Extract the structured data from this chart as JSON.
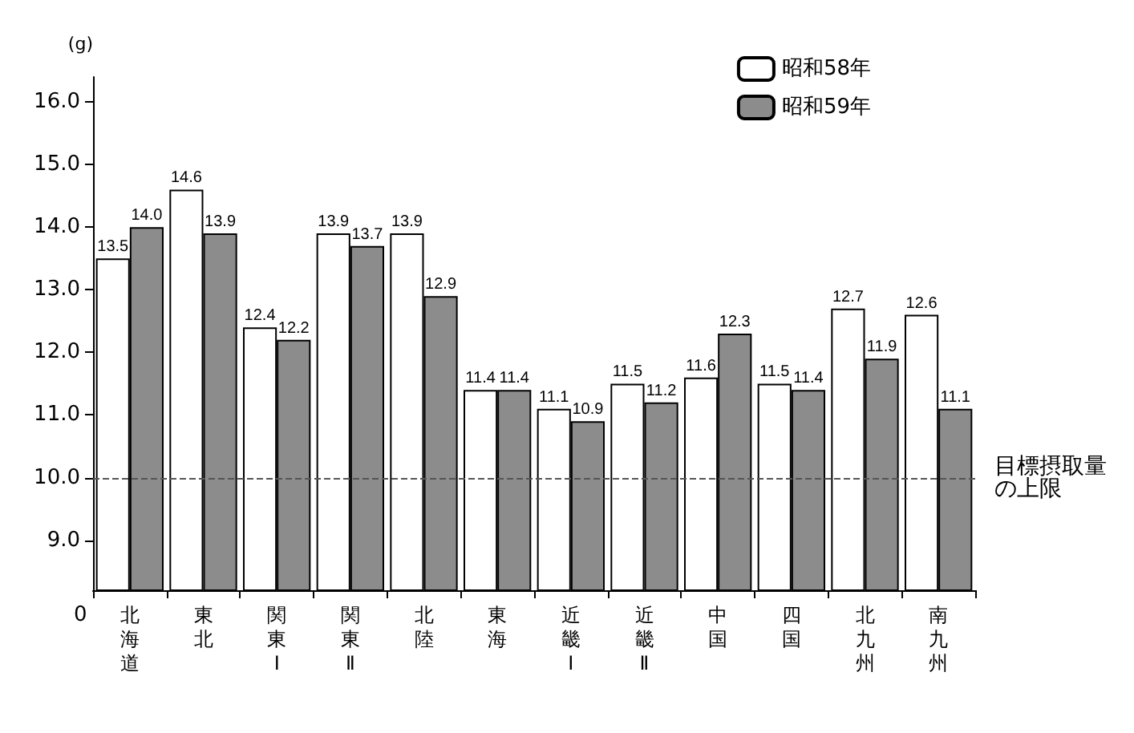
{
  "chart_data": {
    "type": "bar",
    "ylabel": "(g)",
    "categories": [
      "北海道",
      "東北",
      "関東Ⅰ",
      "関東Ⅱ",
      "北陸",
      "東海",
      "近畿Ⅰ",
      "近畿Ⅱ",
      "中国",
      "四国",
      "北九州",
      "南九州"
    ],
    "series": [
      {
        "name": "昭和58年",
        "color": "#ffffff",
        "values": [
          13.5,
          14.6,
          12.4,
          13.9,
          13.9,
          11.4,
          11.1,
          11.5,
          11.6,
          11.5,
          12.7,
          12.6
        ],
        "value_labels": [
          "13.5",
          "14.6",
          "12.4",
          "13.9",
          "13.9",
          "11.4",
          "11.1",
          "11.5",
          "11.6",
          "11.5",
          "12.7",
          "12.6"
        ]
      },
      {
        "name": "昭和59年",
        "color": "#8c8c8c",
        "values": [
          14.0,
          13.9,
          12.2,
          13.7,
          12.9,
          11.4,
          10.9,
          11.2,
          12.3,
          11.4,
          11.9,
          11.1
        ],
        "value_labels": [
          "14.0",
          "13.9",
          "12.2",
          "13.7",
          "12.9",
          "11.4",
          "10.9",
          "11.2",
          "12.3",
          "11.4",
          "11.9",
          "11.1"
        ]
      }
    ],
    "ylim": [
      8.2,
      16.4
    ],
    "yticks": [
      {
        "value": 9,
        "label": "9.0"
      },
      {
        "value": 10,
        "label": "10.0"
      },
      {
        "value": 11,
        "label": "11.0"
      },
      {
        "value": 12,
        "label": "12.0"
      },
      {
        "value": 13,
        "label": "13.0"
      },
      {
        "value": 14,
        "label": "14.0"
      },
      {
        "value": 15,
        "label": "15.0"
      },
      {
        "value": 16,
        "label": "16.0"
      }
    ],
    "ref_lines": [
      {
        "axis": "y",
        "value": 10,
        "label": "目標摂取量の上限",
        "line_style": "dashed",
        "color": "#555555"
      }
    ],
    "annotations": [
      "0"
    ],
    "grid": false,
    "legend": "top right"
  }
}
